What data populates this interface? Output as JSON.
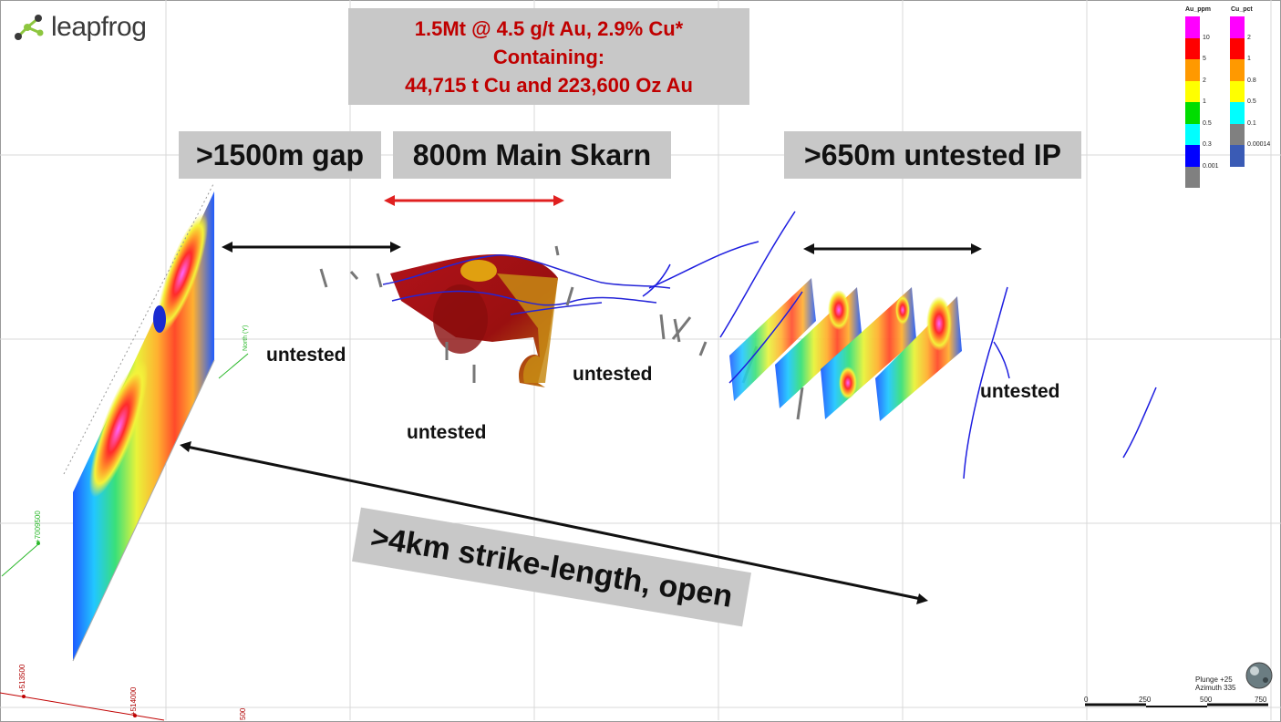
{
  "app": {
    "logo_text": "leapfrog",
    "logo_icon": "leapfrog-molecule-icon"
  },
  "resource": {
    "line1": "1.5Mt @ 4.5 g/t Au, 2.9% Cu*",
    "line2": "Containing:",
    "line3": "44,715 t Cu and 223,600 Oz Au"
  },
  "labels": {
    "gap": ">1500m gap",
    "main_skarn": "800m Main Skarn",
    "untested_ip": ">650m untested IP",
    "strike": ">4km strike-length, open",
    "untested": "untested"
  },
  "legend": {
    "au": {
      "title": "Au_ppm",
      "values": [
        "10",
        "5",
        "2",
        "1",
        "0.5",
        "0.3",
        "0.001"
      ],
      "colors": [
        "#ff00ff",
        "#ff0000",
        "#ff9900",
        "#ffff00",
        "#00dd00",
        "#00ffff",
        "#0000ff",
        "#808080"
      ]
    },
    "cu": {
      "title": "Cu_pct",
      "values": [
        "2",
        "1",
        "0.8",
        "0.5",
        "0.1",
        "0.00014"
      ],
      "colors": [
        "#ff00ff",
        "#ff0000",
        "#ff9900",
        "#ffff00",
        "#00ffff",
        "#808080",
        "#3a5bb5"
      ]
    }
  },
  "view": {
    "plunge": "Plunge +25",
    "azimuth": "Azimuth 335"
  },
  "scale_bar": {
    "ticks": [
      "0",
      "250",
      "500",
      "750"
    ]
  },
  "grid_labels": {
    "north": "North (Y)",
    "northing": "+7009500",
    "e1": "+513500",
    "e2": "+514000",
    "e3": "500"
  }
}
